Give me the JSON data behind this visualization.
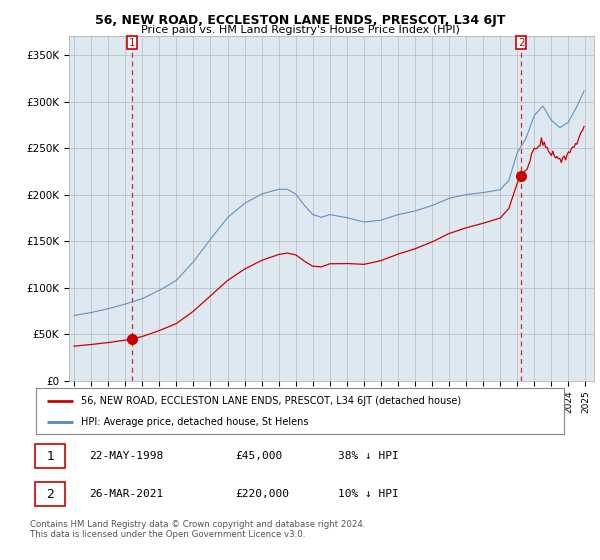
{
  "title": "56, NEW ROAD, ECCLESTON LANE ENDS, PRESCOT, L34 6JT",
  "subtitle": "Price paid vs. HM Land Registry's House Price Index (HPI)",
  "ylabel_ticks": [
    "£0",
    "£50K",
    "£100K",
    "£150K",
    "£200K",
    "£250K",
    "£300K",
    "£350K"
  ],
  "ytick_values": [
    0,
    50000,
    100000,
    150000,
    200000,
    250000,
    300000,
    350000
  ],
  "ylim": [
    0,
    370000
  ],
  "xlim_start": 1994.7,
  "xlim_end": 2025.5,
  "point1_x": 1998.38,
  "point1_y": 45000,
  "point2_x": 2021.23,
  "point2_y": 220000,
  "legend_line1": "56, NEW ROAD, ECCLESTON LANE ENDS, PRESCOT, L34 6JT (detached house)",
  "legend_line2": "HPI: Average price, detached house, St Helens",
  "table_row1": [
    "1",
    "22-MAY-1998",
    "£45,000",
    "38% ↓ HPI"
  ],
  "table_row2": [
    "2",
    "26-MAR-2021",
    "£220,000",
    "10% ↓ HPI"
  ],
  "footer": "Contains HM Land Registry data © Crown copyright and database right 2024.\nThis data is licensed under the Open Government Licence v3.0.",
  "red_color": "#cc0000",
  "blue_color": "#5588bb",
  "bg_fill": "#dde8f0",
  "background_color": "#ffffff",
  "grid_color": "#bbbbbb"
}
